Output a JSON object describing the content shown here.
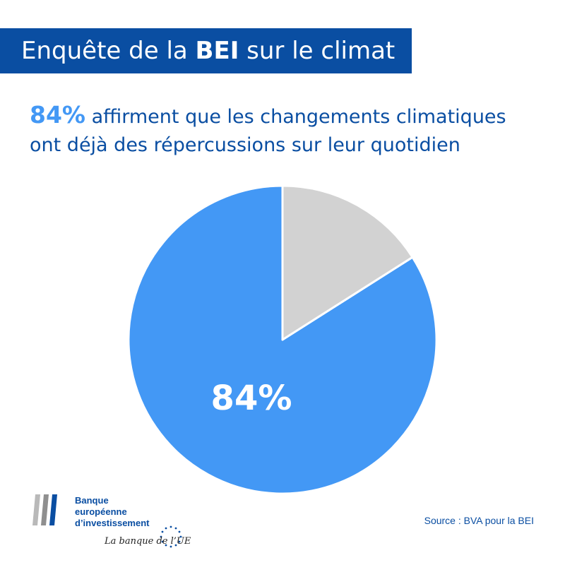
{
  "header": {
    "title_prefix": "Enquête de la",
    "title_bold": "BEI",
    "title_suffix": "sur le climat",
    "banner_color": "#0a4ea2"
  },
  "headline": {
    "stat": "84%",
    "line1": "affirment que les changements climatiques",
    "line2": "ont déjà des répercussions sur leur quotidien"
  },
  "chart_data": {
    "type": "pie",
    "slices": [
      {
        "value": 84,
        "label": "84%",
        "color": "#4398f5"
      },
      {
        "value": 16,
        "label": "",
        "color": "#d2d2d2"
      }
    ]
  },
  "logo": {
    "line1": "Banque",
    "line2": "européenne",
    "line3": "d’investissement",
    "tagline": "La banque de l’UE"
  },
  "source": "Source : BVA pour la BEI"
}
